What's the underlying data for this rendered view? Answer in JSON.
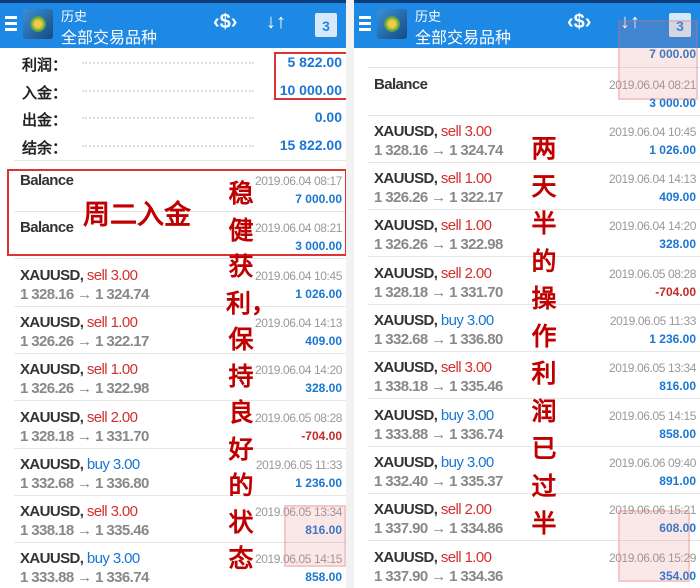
{
  "header": {
    "subtitle": "历史",
    "title": "全部交易品种",
    "icons": [
      "menu-icon",
      "metatrader-logo",
      "currency-exchange-icon",
      "sort-icon",
      "calendar-icon"
    ],
    "calendar_day": "3",
    "sort_glyph": "↓↑",
    "exchange_glyph": "‹$›"
  },
  "summary": [
    {
      "label": "利润：",
      "value": "5 822.00"
    },
    {
      "label": "入金：",
      "value": "10 000.00"
    },
    {
      "label": "出金：",
      "value": "0.00"
    },
    {
      "label": "结余：",
      "value": "15 822.00"
    }
  ],
  "left_rows": [
    {
      "symbol": "Balance",
      "date": "2019.06.04 08:17",
      "amount": "7 000.00"
    },
    {
      "symbol": "Balance",
      "date": "2019.06.04 08:21",
      "amount": "3 000.00"
    },
    {
      "symbol": "XAUUSD,",
      "side": "sell 3.00",
      "type": "sell",
      "prices": "1 328.16 → 1 324.74",
      "date": "2019.06.04 10:45",
      "amount": "1 026.00"
    },
    {
      "symbol": "XAUUSD,",
      "side": "sell 1.00",
      "type": "sell",
      "prices": "1 326.26 → 1 322.17",
      "date": "2019.06.04 14:13",
      "amount": "409.00"
    },
    {
      "symbol": "XAUUSD,",
      "side": "sell 1.00",
      "type": "sell",
      "prices": "1 326.26 → 1 322.98",
      "date": "2019.06.04 14:20",
      "amount": "328.00"
    },
    {
      "symbol": "XAUUSD,",
      "side": "sell 2.00",
      "type": "sell",
      "prices": "1 328.18 → 1 331.70",
      "date": "2019.06.05 08:28",
      "amount": "-704.00"
    },
    {
      "symbol": "XAUUSD,",
      "side": "buy 3.00",
      "type": "buy",
      "prices": "1 332.68 → 1 336.80",
      "date": "2019.06.05 11:33",
      "amount": "1 236.00"
    },
    {
      "symbol": "XAUUSD,",
      "side": "sell 3.00",
      "type": "sell",
      "prices": "1 338.18 → 1 335.46",
      "date": "2019.06.05 13:34",
      "amount": "816.00"
    },
    {
      "symbol": "XAUUSD,",
      "side": "buy 3.00",
      "type": "buy",
      "prices": "1 333.88 → 1 336.74",
      "date": "2019.06.05 14:15",
      "amount": "858.00"
    }
  ],
  "right_partial_amount": "7 000.00",
  "right_rows": [
    {
      "symbol": "Balance",
      "date": "2019.06.04 08:21",
      "amount": "3 000.00"
    },
    {
      "symbol": "XAUUSD,",
      "side": "sell 3.00",
      "type": "sell",
      "prices": "1 328.16 → 1 324.74",
      "date": "2019.06.04 10:45",
      "amount": "1 026.00"
    },
    {
      "symbol": "XAUUSD,",
      "side": "sell 1.00",
      "type": "sell",
      "prices": "1 326.26 → 1 322.17",
      "date": "2019.06.04 14:13",
      "amount": "409.00"
    },
    {
      "symbol": "XAUUSD,",
      "side": "sell 1.00",
      "type": "sell",
      "prices": "1 326.26 → 1 322.98",
      "date": "2019.06.04 14:20",
      "amount": "328.00"
    },
    {
      "symbol": "XAUUSD,",
      "side": "sell 2.00",
      "type": "sell",
      "prices": "1 328.18 → 1 331.70",
      "date": "2019.06.05 08:28",
      "amount": "-704.00"
    },
    {
      "symbol": "XAUUSD,",
      "side": "buy 3.00",
      "type": "buy",
      "prices": "1 332.68 → 1 336.80",
      "date": "2019.06.05 11:33",
      "amount": "1 236.00"
    },
    {
      "symbol": "XAUUSD,",
      "side": "sell 3.00",
      "type": "sell",
      "prices": "1 338.18 → 1 335.46",
      "date": "2019.06.05 13:34",
      "amount": "816.00"
    },
    {
      "symbol": "XAUUSD,",
      "side": "buy 3.00",
      "type": "buy",
      "prices": "1 333.88 → 1 336.74",
      "date": "2019.06.05 14:15",
      "amount": "858.00"
    },
    {
      "symbol": "XAUUSD,",
      "side": "buy 3.00",
      "type": "buy",
      "prices": "1 332.40 → 1 335.37",
      "date": "2019.06.06 09:40",
      "amount": "891.00"
    },
    {
      "symbol": "XAUUSD,",
      "side": "sell 2.00",
      "type": "sell",
      "prices": "1 337.90 → 1 334.86",
      "date": "2019.06.06 15:21",
      "amount": "608.00"
    },
    {
      "symbol": "XAUUSD,",
      "side": "sell 1.00",
      "type": "sell",
      "prices": "1 337.90 → 1 334.36",
      "date": "2019.06.06 15:29",
      "amount": "354.00"
    }
  ],
  "annotations": {
    "deposit_note": "周二入金",
    "left_vertical": "稳健获利，保持良好的状态",
    "right_vertical": "两天半的操作利润已过半"
  },
  "colors": {
    "header": "#1e88e5",
    "sell": "#d32f2f",
    "buy": "#1976d2",
    "annotation": "#c00000",
    "highlight_box": "#dd3333"
  }
}
